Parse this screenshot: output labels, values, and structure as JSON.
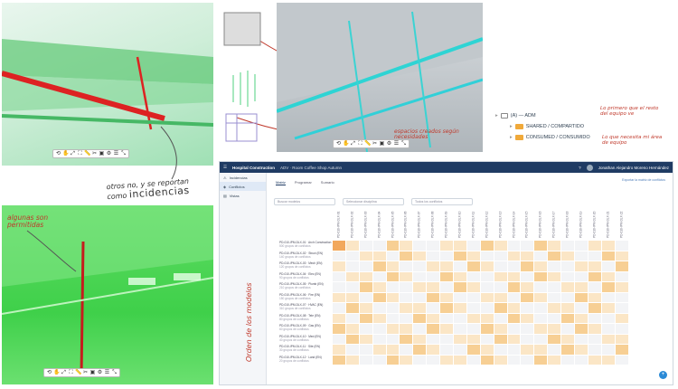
{
  "annotations": {
    "otros_no": "otros no, y se reportan",
    "como": "como",
    "incidencias": "incidencias",
    "algunas_line1": "algunas son",
    "algunas_line2": "permitidas",
    "espacios_line1": "espacios creados según",
    "espacios_line2": "necesidades",
    "orden": "Orden de los modelos",
    "lo_primero_line1": "Lo primero que el resto",
    "lo_primero_line2": "del equipo ve",
    "lo_que_line1": "Lo que necesita mi área",
    "lo_que_line2": "de equipo"
  },
  "tree": {
    "root": "(A) — ADM",
    "item1": "SHARED / COMPARTIDO",
    "item2": "CONSUMED / CONSUMIDO"
  },
  "app": {
    "project": "Hospital Construction",
    "breadcrumb": "ADV · Room Coffee Shop Autumn",
    "user": "Jonathan Alejandro Moreno Hernández",
    "nav": [
      "Incidencias",
      "Conflictos",
      "Vistas"
    ],
    "tabs": [
      "Matriz",
      "Programar",
      "Sumario"
    ],
    "filters": [
      "Buscar modelos",
      "Seleccionar disciplina",
      "Todos los conflictos"
    ],
    "right_info": "Exportar la matriz de conflictos"
  },
  "matrix": {
    "rows": [
      {
        "name": "PD-010-IPM-DLX-01 · Arch Construction",
        "sub": "500 grupos de conflictos"
      },
      {
        "name": "PD-010-IPM-DLX-02 · Struct (EN)",
        "sub": "140 grupos de conflictos"
      },
      {
        "name": "PD-010-IPM-DLX-03 · Mech (EN)",
        "sub": "120 grupos de conflictos"
      },
      {
        "name": "PD-010-IPM-DLX-04 · Elec (EN)",
        "sub": "90 grupos de conflictos"
      },
      {
        "name": "PD-010-IPM-DLX-05 · Plumb (EN)",
        "sub": "210 grupos de conflictos"
      },
      {
        "name": "PD-010-IPM-DLX-06 · Fire (EN)",
        "sub": "150 grupos de conflictos"
      },
      {
        "name": "PD-010-IPM-DLX-07 · HVAC (EN)",
        "sub": "310 grupos de conflictos"
      },
      {
        "name": "PD-010-IPM-DLX-08 · Tele (EN)",
        "sub": "80 grupos de conflictos"
      },
      {
        "name": "PD-010-IPM-DLX-09 · Gas (EN)",
        "sub": "60 grupos de conflictos"
      },
      {
        "name": "PD-010-IPM-DLX-10 · Med (EN)",
        "sub": "40 grupos de conflictos"
      },
      {
        "name": "PD-010-IPM-DLX-11 · Site (EN)",
        "sub": "30 grupos de conflictos"
      },
      {
        "name": "PD-010-IPM-DLX-12 · Land (EN)",
        "sub": "20 grupos de conflictos"
      }
    ],
    "cols": [
      "PD-010-IPM-DLX-01",
      "PD-010-IPM-DLX-02",
      "PD-010-IPM-DLX-03",
      "PD-010-IPM-DLX-04",
      "PD-010-IPM-DLX-05",
      "PD-010-IPM-DLX-06",
      "PD-010-IPM-DLX-07",
      "PD-010-IPM-DLX-08",
      "PD-010-IPM-DLX-09",
      "PD-010-IPM-DLX-10",
      "PD-010-IPM-DLX-11",
      "PD-010-IPM-DLX-12",
      "PD-010-IPM-DLX-13",
      "PD-010-IPM-DLX-14",
      "PD-010-IPM-DLX-15",
      "PD-010-IPM-DLX-16",
      "PD-010-IPM-DLX-17",
      "PD-010-IPM-DLX-18",
      "PD-010-IPM-DLX-19",
      "PD-010-IPM-DLX-20",
      "PD-010-IPM-DLX-21",
      "PD-010-IPM-DLX-22"
    ],
    "colors": {
      "high": "#f2a85c",
      "mid": "#f7cf94",
      "low": "#fbe6c6",
      "none": "#f3f4f6"
    }
  }
}
